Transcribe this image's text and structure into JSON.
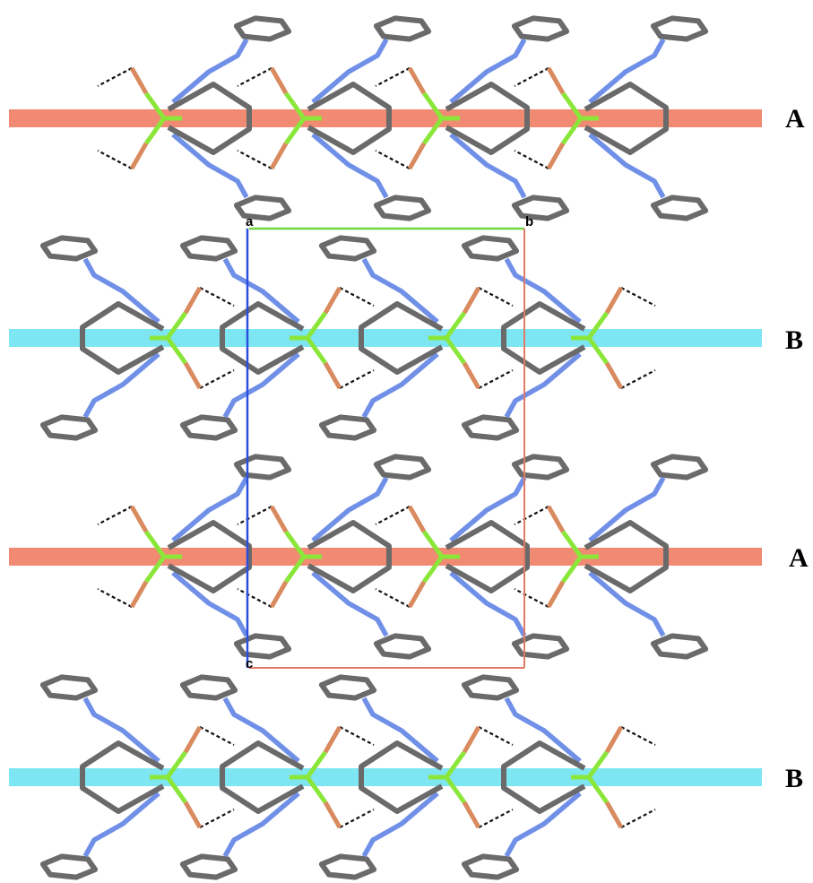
{
  "figure": {
    "layers": [
      {
        "label": "A",
        "band_color": "#f08a72"
      },
      {
        "label": "B",
        "band_color": "#7ee6f2"
      },
      {
        "label": "A",
        "band_color": "#f08a72"
      },
      {
        "label": "B",
        "band_color": "#7ee6f2"
      }
    ],
    "unit_cell": {
      "axis_labels": {
        "a": "a",
        "b": "b",
        "c": "c"
      },
      "colors": {
        "a_axis": "#2a4ee0",
        "b_axis": "#6fd845",
        "c_edge": "#e07a66"
      }
    },
    "atom_colors": {
      "carbon": "#6a6a6a",
      "nitrogen": "#7090e8",
      "metal": "#8be63a",
      "halide": "#d98a5e",
      "hydrogen_bond": "#111111"
    }
  }
}
